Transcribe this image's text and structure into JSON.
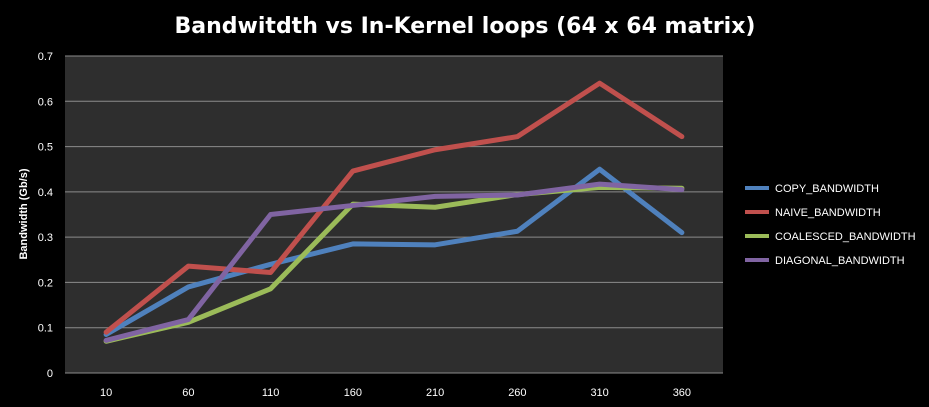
{
  "chart_data": {
    "type": "line",
    "title": "Bandwitdth vs In-Kernel loops (64 x 64 matrix)",
    "xlabel": "",
    "ylabel": "Bandwidth (Gb/s)",
    "categories": [
      "10",
      "60",
      "110",
      "160",
      "210",
      "260",
      "310",
      "360"
    ],
    "ylim": [
      0,
      0.7
    ],
    "yticks": [
      "0",
      "0.1",
      "0.2",
      "0.3",
      "0.4",
      "0.5",
      "0.6",
      "0.7"
    ],
    "grid": true,
    "legend_position": "right",
    "series": [
      {
        "name": "COPY_BANDWIDTH",
        "color": "#4f81bd",
        "values": [
          0.085,
          0.19,
          0.24,
          0.285,
          0.283,
          0.313,
          0.45,
          0.31
        ]
      },
      {
        "name": "NAIVE_BANDWIDTH",
        "color": "#c0504d",
        "values": [
          0.09,
          0.236,
          0.222,
          0.446,
          0.493,
          0.522,
          0.64,
          0.522
        ]
      },
      {
        "name": "COALESCED_BANDWIDTH",
        "color": "#9bbb59",
        "values": [
          0.07,
          0.112,
          0.186,
          0.373,
          0.366,
          0.394,
          0.41,
          0.408
        ]
      },
      {
        "name": "DIAGONAL_BANDWIDTH",
        "color": "#8064a2",
        "values": [
          0.072,
          0.118,
          0.35,
          0.37,
          0.39,
          0.393,
          0.417,
          0.405
        ]
      }
    ]
  }
}
